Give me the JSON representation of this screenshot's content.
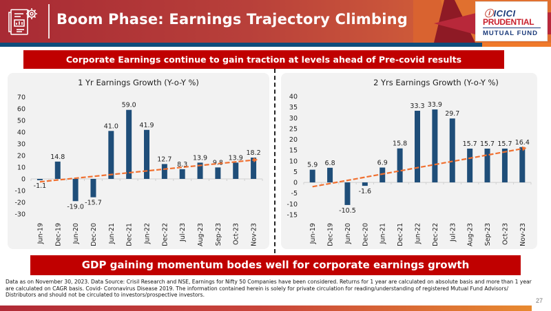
{
  "header": {
    "title": "Boom Phase: Earnings Trajectory Climbing Up",
    "icon": "report-gear-icon",
    "logo": {
      "line1": "ICICI",
      "line2": "PRUDENTIAL",
      "line3": "MUTUAL FUND"
    }
  },
  "banners": {
    "top": "Corporate Earnings continue to gain traction at levels ahead of Pre-covid results",
    "bottom": "GDP gaining momentum bodes well for corporate earnings growth"
  },
  "colors": {
    "bar": "#1f4e79",
    "trend": "#f07030",
    "banner": "#c00000",
    "panel": "#f2f2f2"
  },
  "chart_data": [
    {
      "type": "bar",
      "title": "1 Yr Earnings Growth (Y-o-Y %)",
      "xlabel": "",
      "ylabel": "",
      "categories": [
        "Jun-19",
        "Dec-19",
        "Jun-20",
        "Dec-20",
        "Jun-21",
        "Dec-21",
        "Jun-22",
        "Dec-22",
        "Jul-23",
        "Aug-23",
        "Sep-23",
        "Oct-23",
        "Nov-23"
      ],
      "values": [
        -1.1,
        14.8,
        -19.0,
        -15.7,
        41.0,
        59.0,
        41.9,
        12.7,
        8.3,
        13.9,
        9.8,
        13.9,
        18.2
      ],
      "labels": [
        "-1.1",
        "14.8",
        "-19.0",
        "-15.7",
        "41.0",
        "59.0",
        "41.9",
        "12.7",
        "8.3",
        "13.9",
        "9.8",
        "13.9",
        "18.2"
      ],
      "ylim": [
        -30,
        70
      ],
      "yticks": [
        70,
        60,
        50,
        40,
        30,
        20,
        10,
        0,
        -10,
        -20,
        -30
      ],
      "trendline": {
        "style": "dashed-arrow",
        "start": -2.5,
        "end": 16.5
      },
      "grid": false,
      "legend": "none"
    },
    {
      "type": "bar",
      "title": "2 Yrs Earnings Growth (Y-o-Y %)",
      "xlabel": "",
      "ylabel": "",
      "categories": [
        "Jun-19",
        "Dec-19",
        "Jun-20",
        "Dec-20",
        "Jun-21",
        "Dec-21",
        "Jun-22",
        "Dec-22",
        "Jul-23",
        "Aug-23",
        "Sep-23",
        "Oct-23",
        "Nov-23"
      ],
      "values": [
        5.9,
        6.8,
        -10.5,
        -1.6,
        6.9,
        15.8,
        33.3,
        33.9,
        29.7,
        15.7,
        15.7,
        15.7,
        16.4
      ],
      "labels": [
        "5.9",
        "6.8",
        "-10.5",
        "-1.6",
        "6.9",
        "15.8",
        "33.3",
        "33.9",
        "29.7",
        "15.7",
        "15.7",
        "15.7",
        "16.4"
      ],
      "ylim": [
        -15,
        40
      ],
      "yticks": [
        40,
        35,
        30,
        25,
        20,
        15,
        10,
        5,
        0,
        -5,
        -10,
        -15
      ],
      "trendline": {
        "style": "dashed-arrow",
        "start": -2.0,
        "end": 16.0
      },
      "grid": false,
      "legend": "none"
    }
  ],
  "footnote": "Data as on November 30, 2023. Data Source: Crisil Research and NSE, Earnings for Nifty 50 Companies have been considered. Returns for 1 year are calculated on absolute basis and more than 1 year are calculated on CAGR basis. Covid- Coronavirus Disease 2019. The information contained herein is solely for private circulation for reading/understanding of registered Mutual Fund Advisors/ Distributors and should not be circulated to investors/prospective investors.",
  "page_number": "27"
}
